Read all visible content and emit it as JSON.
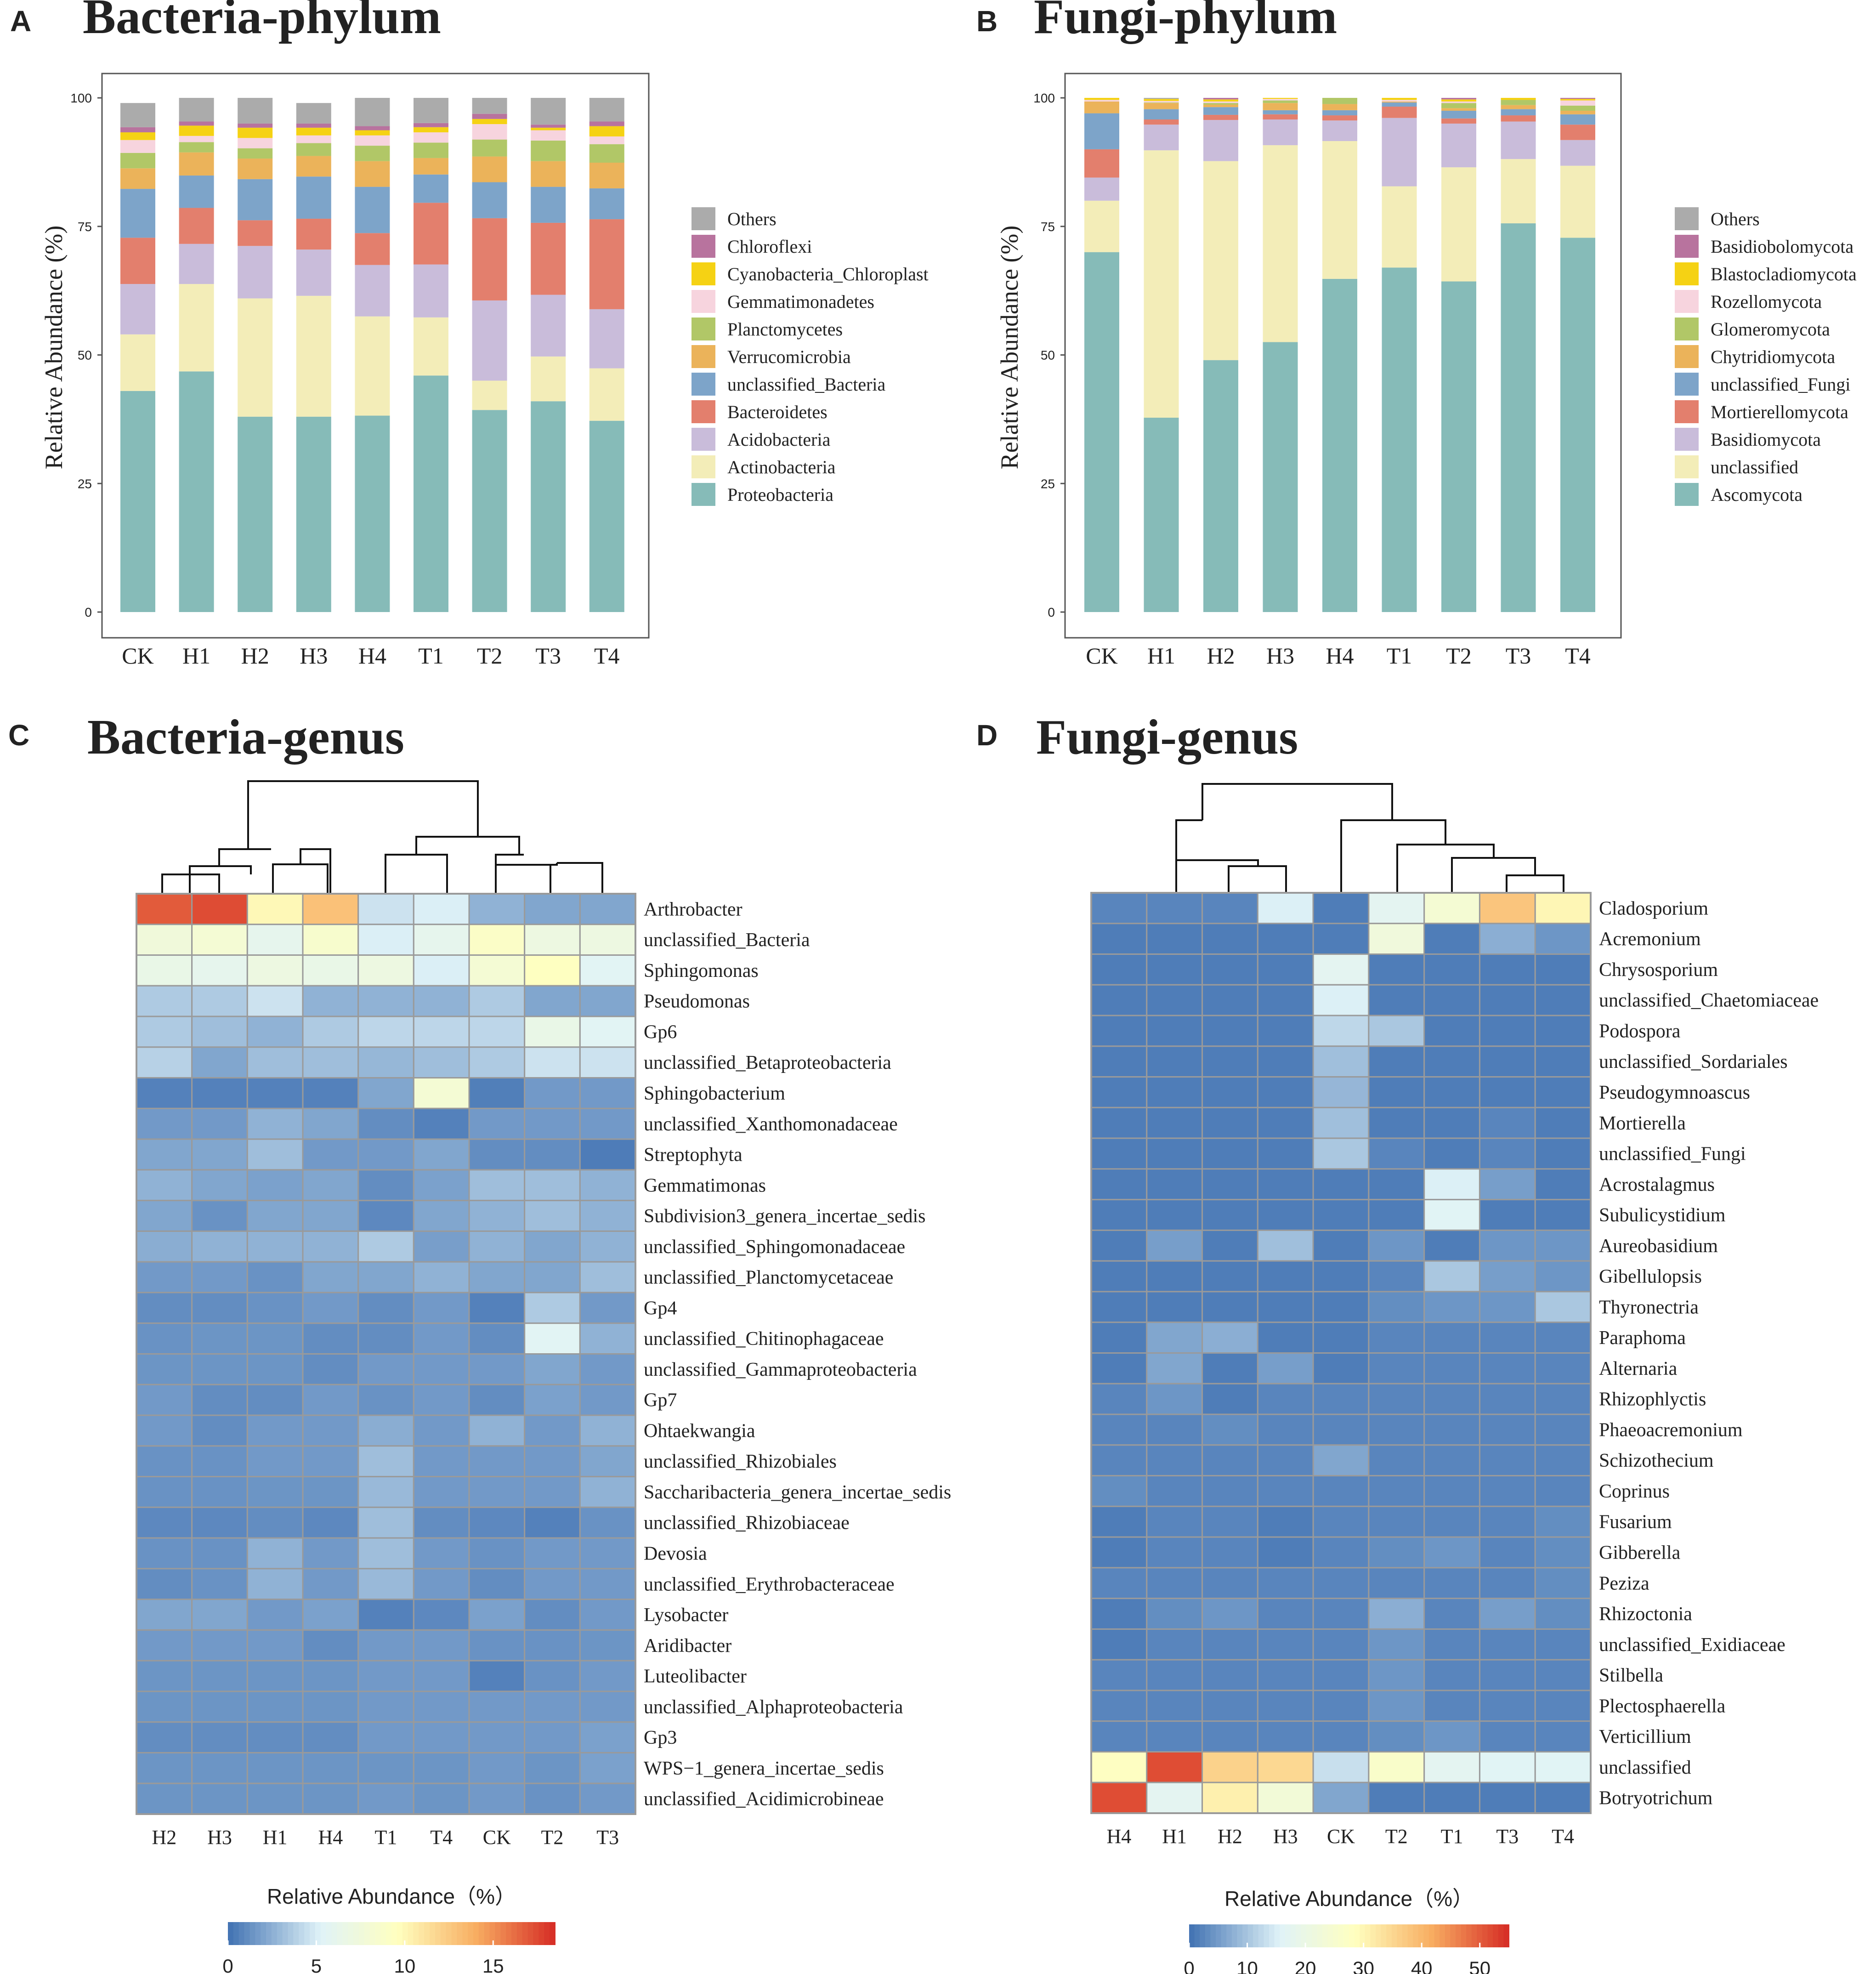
{
  "panels": [
    {
      "letter": "A",
      "title": "Bacteria-phylum"
    },
    {
      "letter": "B",
      "title": "Fungi-phylum"
    },
    {
      "letter": "C",
      "title": "Bacteria-genus"
    },
    {
      "letter": "D",
      "title": "Fungi-genus"
    }
  ],
  "chart_data": [
    {
      "type": "bar",
      "stacked": true,
      "title": "Bacteria-phylum",
      "ylabel": "Relative Abundance (%)",
      "xlabel": "",
      "ylim": [
        0,
        100
      ],
      "yticks": [
        0,
        25,
        50,
        75,
        100
      ],
      "categories": [
        "CK",
        "H1",
        "H2",
        "H3",
        "H4",
        "T1",
        "T2",
        "T3",
        "T4"
      ],
      "legend_position": "right",
      "series": [
        {
          "name": "Proteobacteria",
          "color": "#86BBB8",
          "values": [
            43,
            46.8,
            38,
            38,
            38.2,
            46,
            39.3,
            41,
            37.2
          ]
        },
        {
          "name": "Actinobacteria",
          "color": "#F3EDB8",
          "values": [
            11,
            17,
            23,
            23.5,
            19.3,
            11.3,
            5.7,
            8.7,
            10.2
          ]
        },
        {
          "name": "Acidobacteria",
          "color": "#C9BCDA",
          "values": [
            9.8,
            7.8,
            10.2,
            9,
            10,
            10.3,
            15.6,
            12,
            11.5
          ]
        },
        {
          "name": "Bacteroidetes",
          "color": "#E37F6D",
          "values": [
            9,
            7,
            5,
            6,
            6.2,
            12,
            16,
            14,
            17.5
          ]
        },
        {
          "name": "unclassified_Bacteria",
          "color": "#7DA4C9",
          "values": [
            9.5,
            6.3,
            8,
            8.2,
            9,
            5.5,
            7,
            7,
            6
          ]
        },
        {
          "name": "Verrucomicrobia",
          "color": "#EBB35A",
          "values": [
            4,
            4.5,
            4,
            4,
            5,
            3.2,
            5,
            5,
            5
          ]
        },
        {
          "name": "Planctomycetes",
          "color": "#B1C767",
          "values": [
            3,
            2,
            2,
            2.5,
            3,
            3,
            3.3,
            4,
            3.6
          ]
        },
        {
          "name": "Gemmatimonadetes",
          "color": "#F7D4DE",
          "values": [
            2.5,
            1.2,
            2,
            1.5,
            2,
            2,
            3,
            2,
            1.5
          ]
        },
        {
          "name": "Cyanobacteria_Chloroplast",
          "color": "#F5D214",
          "values": [
            1.5,
            2,
            2,
            1.5,
            1,
            1,
            1,
            0.5,
            2
          ]
        },
        {
          "name": "Chloroflexi",
          "color": "#B8739E",
          "values": [
            1,
            0.8,
            0.8,
            0.8,
            0.8,
            0.8,
            1,
            0.6,
            0.9
          ]
        },
        {
          "name": "Others",
          "color": "#ABABAB",
          "values": [
            4.7,
            4.6,
            5,
            4,
            5.5,
            4.9,
            3.1,
            5.2,
            4.6
          ]
        }
      ]
    },
    {
      "type": "bar",
      "stacked": true,
      "title": "Fungi-phylum",
      "ylabel": "Relative Abundance (%)",
      "xlabel": "",
      "ylim": [
        0,
        100
      ],
      "yticks": [
        0,
        25,
        50,
        75,
        100
      ],
      "categories": [
        "CK",
        "H1",
        "H2",
        "H3",
        "H4",
        "T1",
        "T2",
        "T3",
        "T4"
      ],
      "legend_position": "right",
      "series": [
        {
          "name": "Ascomycota",
          "color": "#86BBB8",
          "values": [
            70,
            37.8,
            49,
            52.5,
            64.8,
            67,
            64.3,
            75.6,
            72.8
          ]
        },
        {
          "name": "unclassified",
          "color": "#F3EDB8",
          "values": [
            10,
            52,
            38.7,
            38.3,
            26.8,
            15.8,
            22.2,
            12.5,
            14
          ]
        },
        {
          "name": "Basidiomycota",
          "color": "#C9BCDA",
          "values": [
            4.5,
            5,
            8,
            5,
            4,
            13.3,
            8.5,
            7.3,
            5
          ]
        },
        {
          "name": "Mortierellomycota",
          "color": "#E37F6D",
          "values": [
            5.5,
            1,
            1,
            1,
            1,
            2.2,
            1,
            1.2,
            3
          ]
        },
        {
          "name": "unclassified_Fungi",
          "color": "#7DA4C9",
          "values": [
            7,
            2,
            1.5,
            0.8,
            1,
            0.8,
            1.5,
            1.2,
            2
          ]
        },
        {
          "name": "Chytridiomycota",
          "color": "#EBB35A",
          "values": [
            2.3,
            1.2,
            0.5,
            1.4,
            1.2,
            0.2,
            0.5,
            0.8,
            0.7
          ]
        },
        {
          "name": "Glomeromycota",
          "color": "#B1C767",
          "values": [
            0,
            0.1,
            0.3,
            0.5,
            1.2,
            0,
            1,
            1,
            1
          ]
        },
        {
          "name": "Rozellomycota",
          "color": "#F7D4DE",
          "values": [
            0.3,
            0.3,
            0.3,
            0.3,
            0,
            0.3,
            0.3,
            0,
            1
          ]
        },
        {
          "name": "Blastocladiomycota",
          "color": "#F5D214",
          "values": [
            0.4,
            0.4,
            0.4,
            0.2,
            0,
            0.4,
            0.4,
            0.4,
            0.3
          ]
        },
        {
          "name": "Basidiobolomycota",
          "color": "#B8739E",
          "values": [
            0,
            0,
            0.3,
            0,
            0,
            0,
            0.3,
            0,
            0.2
          ]
        },
        {
          "name": "Others",
          "color": "#ABABAB",
          "values": [
            0,
            0.2,
            0,
            0,
            0,
            0,
            0,
            0,
            0
          ]
        }
      ]
    },
    {
      "type": "heatmap",
      "title": "Bacteria-genus",
      "columns": [
        "H2",
        "H3",
        "H1",
        "H4",
        "T1",
        "T4",
        "CK",
        "T2",
        "T3"
      ],
      "rows": [
        "Arthrobacter",
        "unclassified_Bacteria",
        "Sphingomonas",
        "Pseudomonas",
        "Gp6",
        "unclassified_Betaproteobacteria",
        "Sphingobacterium",
        "unclassified_Xanthomonadaceae",
        "Streptophyta",
        "Gemmatimonas",
        "Subdivision3_genera_incertae_sedis",
        "unclassified_Sphingomonadaceae",
        "unclassified_Planctomycetaceae",
        "Gp4",
        "unclassified_Chitinophagaceae",
        "unclassified_Gammaproteobacteria",
        "Gp7",
        "Ohtaekwangia",
        "unclassified_Rhizobiales",
        "Saccharibacteria_genera_incertae_sedis",
        "unclassified_Rhizobiaceae",
        "Devosia",
        "unclassified_Erythrobacteraceae",
        "Lysobacter",
        "Aridibacter",
        "Luteolibacter",
        "unclassified_Alphaproteobacteria",
        "Gp3",
        "WPS−1_genera_incertae_sedis",
        "unclassified_Acidimicrobineae"
      ],
      "values": [
        [
          17,
          17.5,
          10,
          13,
          4.5,
          5,
          2.5,
          2,
          2
        ],
        [
          7.5,
          8,
          6,
          8.5,
          5,
          6,
          9,
          7,
          7
        ],
        [
          6.5,
          6,
          7,
          6.5,
          7,
          5,
          8,
          9.5,
          5.5
        ],
        [
          3.5,
          3.5,
          4.5,
          2.5,
          2.5,
          2.5,
          3.5,
          2,
          2
        ],
        [
          3.5,
          3,
          2.5,
          3.5,
          4,
          4,
          4,
          6.5,
          5.5
        ],
        [
          3.8,
          2,
          3,
          3,
          2.7,
          3,
          3.5,
          4.5,
          4.5
        ],
        [
          0.5,
          0.5,
          0.5,
          0.5,
          2,
          8,
          0.4,
          1.5,
          1.5
        ],
        [
          1.5,
          1.5,
          2.5,
          2,
          1,
          0.5,
          1.5,
          1.5,
          1.5
        ],
        [
          2,
          2,
          3,
          1.5,
          1.5,
          2,
          1,
          1,
          0.3
        ],
        [
          2.5,
          2,
          1.8,
          2,
          1,
          1.8,
          3,
          3,
          2.5
        ],
        [
          2,
          1.2,
          2,
          2,
          0.8,
          2,
          2.5,
          3,
          2.5
        ],
        [
          2.3,
          2.5,
          2.5,
          2.5,
          3.5,
          1.7,
          2.5,
          2,
          2.5
        ],
        [
          1.5,
          1.5,
          1.2,
          2,
          2,
          2.5,
          2,
          2,
          3
        ],
        [
          1,
          1,
          1.2,
          1.5,
          1,
          1.5,
          0.5,
          3.5,
          1.5
        ],
        [
          1.2,
          1.3,
          1.3,
          1,
          1,
          1.5,
          1,
          5.5,
          2.5
        ],
        [
          1.3,
          1.3,
          1.3,
          1,
          1.5,
          1.5,
          1.5,
          2,
          1.5
        ],
        [
          1.5,
          1,
          1,
          1.5,
          1.2,
          1.5,
          1,
          1.8,
          1.5
        ],
        [
          1.5,
          1,
          1.5,
          1.5,
          2.3,
          1.5,
          2.5,
          1.5,
          2.5
        ],
        [
          1.2,
          1.2,
          1.5,
          1.5,
          3,
          1.5,
          1.5,
          1.5,
          2
        ],
        [
          1.2,
          1.2,
          1.3,
          1.3,
          2.8,
          1.5,
          1.5,
          1.5,
          2.5
        ],
        [
          0.8,
          0.8,
          1,
          0.8,
          3,
          1,
          0.8,
          0.5,
          1.2
        ],
        [
          1.2,
          1.2,
          2.5,
          1.5,
          3,
          1.5,
          1.2,
          1.5,
          1.5
        ],
        [
          1,
          1.2,
          2.5,
          1.5,
          2.8,
          1.5,
          1,
          1.5,
          1.5
        ],
        [
          2,
          2,
          1.5,
          1.8,
          0.5,
          0.8,
          1.8,
          1,
          1.5
        ],
        [
          1.5,
          1.5,
          1.5,
          1,
          1.5,
          1.5,
          1.2,
          1.2,
          1.3
        ],
        [
          1.3,
          1.3,
          1.3,
          1.3,
          1.5,
          1.5,
          0.5,
          1.2,
          1.5
        ],
        [
          1.3,
          1.3,
          1.3,
          1.3,
          1.5,
          1.5,
          1.5,
          1.5,
          1.5
        ],
        [
          1,
          1,
          1,
          1,
          1.5,
          1.5,
          1.5,
          1.5,
          1.8
        ],
        [
          1.3,
          1.3,
          1.3,
          1.3,
          1.3,
          1.3,
          1.5,
          1.3,
          1.8
        ],
        [
          1.3,
          1.3,
          1.3,
          1.3,
          1.5,
          1.3,
          1.5,
          1.2,
          1.5
        ]
      ],
      "colorbar": {
        "label": "Relative Abundance（%）",
        "min": 0,
        "max": 18.5,
        "ticks": [
          0,
          5,
          10,
          15
        ]
      }
    },
    {
      "type": "heatmap",
      "title": "Fungi-genus",
      "columns": [
        "H4",
        "H1",
        "H2",
        "H3",
        "CK",
        "T2",
        "T1",
        "T3",
        "T4"
      ],
      "rows": [
        "Cladosporium",
        "Acremonium",
        "Chrysosporium",
        "unclassified_Chaetomiaceae",
        "Podospora",
        "unclassified_Sordariales",
        "Pseudogymnoascus",
        "Mortierella",
        "unclassified_Fungi",
        "Acrostalagmus",
        "Subulicystidium",
        "Aureobasidium",
        "Gibellulopsis",
        "Thyronectria",
        "Paraphoma",
        "Alternaria",
        "Rhizophlyctis",
        "Phaeoacremonium",
        "Schizothecium",
        "Coprinus",
        "Fusarium",
        "Gibberella",
        "Peziza",
        "Rhizoctonia",
        "unclassified_Exidiaceae",
        "Stilbella",
        "Plectosphaerella",
        "Verticillium",
        "unclassified",
        "Botryotrichum"
      ],
      "values": [
        [
          2,
          2,
          2,
          15,
          1,
          17,
          24,
          38,
          30
        ],
        [
          1,
          1,
          1,
          1,
          1,
          22,
          1,
          7,
          4
        ],
        [
          1,
          1,
          1,
          1,
          17,
          1,
          1,
          1,
          1
        ],
        [
          1,
          1,
          1,
          1,
          15,
          1,
          1,
          1,
          1
        ],
        [
          1,
          1,
          1,
          1,
          12,
          10,
          1,
          1,
          1
        ],
        [
          1,
          1,
          1,
          1,
          9,
          1,
          1,
          1,
          1
        ],
        [
          1,
          1,
          1,
          1,
          8,
          1,
          1,
          1,
          1
        ],
        [
          1,
          1,
          1,
          1,
          9,
          1,
          1,
          2,
          1
        ],
        [
          1,
          1,
          1,
          1,
          10,
          2,
          1,
          2,
          1
        ],
        [
          1,
          1,
          1,
          1,
          1,
          1,
          15,
          5,
          1
        ],
        [
          1,
          1,
          1,
          1,
          1,
          1,
          16,
          1,
          1
        ],
        [
          1,
          5,
          1,
          9,
          1,
          4,
          1,
          4,
          4
        ],
        [
          1,
          1,
          1,
          1,
          1,
          2,
          10,
          5,
          4
        ],
        [
          1,
          1,
          1,
          1,
          1,
          3,
          4,
          4,
          10
        ],
        [
          1,
          6,
          7,
          1,
          1,
          2,
          2,
          2,
          2
        ],
        [
          1,
          6,
          1,
          5,
          1,
          2,
          2,
          2,
          2
        ],
        [
          2,
          4,
          1,
          2,
          2,
          2,
          2,
          2,
          2
        ],
        [
          2,
          2,
          3,
          2,
          2,
          2,
          2,
          2,
          2
        ],
        [
          2,
          2,
          2,
          2,
          6,
          2,
          2,
          2,
          2
        ],
        [
          3,
          2,
          2,
          2,
          2,
          2,
          2,
          2,
          2
        ],
        [
          1,
          2,
          2,
          1,
          2,
          2,
          2,
          2,
          3
        ],
        [
          1,
          2,
          2,
          1,
          2,
          3,
          4,
          2,
          3
        ],
        [
          2,
          2,
          2,
          2,
          2,
          2,
          2,
          2,
          3
        ],
        [
          1,
          3,
          4,
          2,
          2,
          7,
          2,
          5,
          3
        ],
        [
          1,
          2,
          2,
          2,
          2,
          4,
          2,
          2,
          2
        ],
        [
          2,
          2,
          2,
          2,
          2,
          4,
          2,
          2,
          2
        ],
        [
          2,
          2,
          2,
          2,
          2,
          4,
          2,
          2,
          2
        ],
        [
          2,
          2,
          2,
          2,
          2,
          3,
          4,
          2,
          2
        ],
        [
          28,
          52,
          36,
          35,
          13,
          26,
          17,
          16,
          16
        ],
        [
          52,
          17,
          31,
          23,
          6,
          1,
          1,
          1,
          1
        ]
      ],
      "colorbar": {
        "label": "Relative Abundance（%）",
        "min": 0,
        "max": 55,
        "ticks": [
          0,
          10,
          20,
          30,
          40,
          50
        ]
      }
    }
  ]
}
